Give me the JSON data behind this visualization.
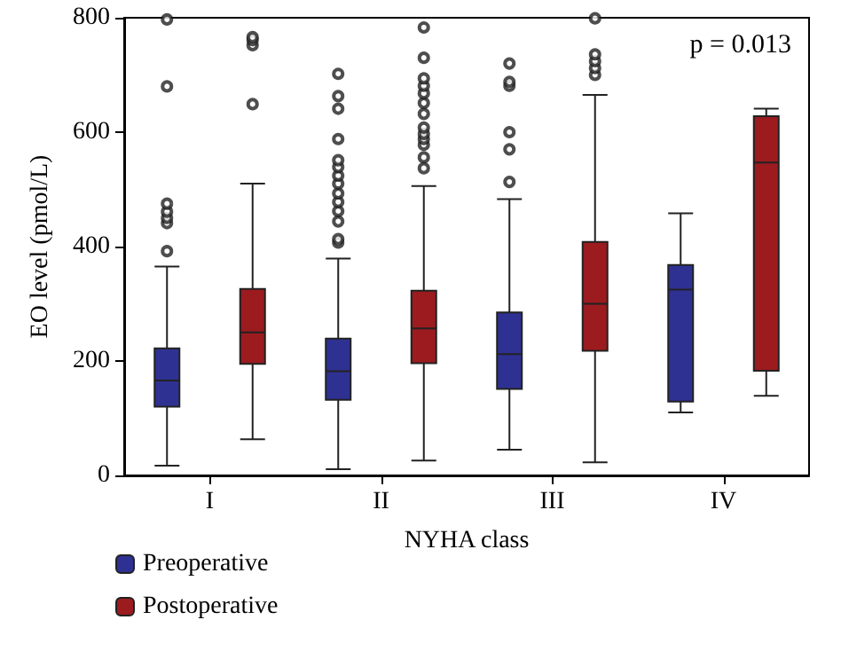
{
  "chart_data": {
    "type": "box",
    "categories": [
      "I",
      "II",
      "III",
      "IV"
    ],
    "xlabel": "NYHA class",
    "ylabel": "EO level (pmol/L)",
    "ylim": [
      0,
      800
    ],
    "yticks": [
      0,
      200,
      400,
      600,
      800
    ],
    "grid": false,
    "legend": "bottom left",
    "annotations": [
      "p = 0.013"
    ],
    "series": [
      {
        "name": "Preoperative",
        "color": "#2e3192",
        "boxes": [
          {
            "low": 17,
            "q1": 120,
            "median": 166,
            "q3": 222,
            "high": 365,
            "outliers": [
              392,
              441,
              450,
              461,
              475,
              680,
              797
            ]
          },
          {
            "low": 11,
            "q1": 132,
            "median": 182,
            "q3": 239,
            "high": 379,
            "outliers": [
              407,
              413,
              444,
              462,
              478,
              493,
              510,
              524,
              539,
              551,
              588,
              641,
              663,
              702
            ]
          },
          {
            "low": 45,
            "q1": 151,
            "median": 212,
            "q3": 285,
            "high": 483,
            "outliers": [
              513,
              570,
              600,
              681,
              688,
              720
            ]
          },
          {
            "low": 110,
            "q1": 129,
            "median": 325,
            "q3": 368,
            "high": 458
          }
        ]
      },
      {
        "name": "Postoperative",
        "color": "#9b1b1f",
        "boxes": [
          {
            "low": 63,
            "q1": 195,
            "median": 250,
            "q3": 326,
            "high": 510,
            "outliers": [
              649,
              752,
              761,
              766
            ]
          },
          {
            "low": 26,
            "q1": 196,
            "median": 257,
            "q3": 323,
            "high": 506,
            "outliers": [
              537,
              556,
              578,
              588,
              597,
              608,
              632,
              651,
              668,
              681,
              694,
              730,
              783
            ]
          },
          {
            "low": 23,
            "q1": 218,
            "median": 300,
            "q3": 408,
            "high": 665,
            "outliers": [
              700,
              712,
              724,
              736,
              799
            ]
          },
          {
            "low": 139,
            "q1": 183,
            "median": 547,
            "q3": 628,
            "high": 641
          }
        ]
      }
    ]
  }
}
